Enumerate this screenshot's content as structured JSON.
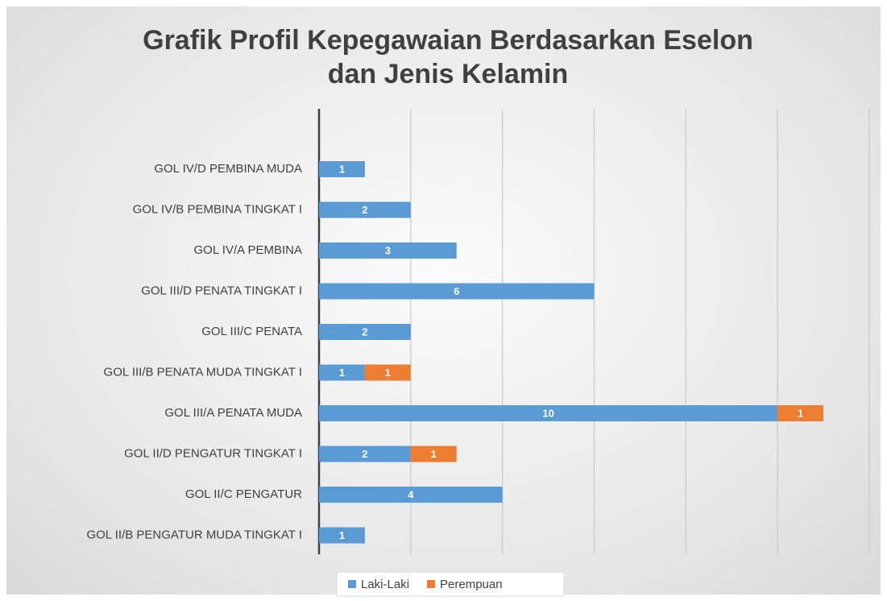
{
  "chart_data": {
    "type": "bar",
    "orientation": "horizontal",
    "stacked": true,
    "title": [
      "Grafik Profil Kepegawaian Berdasarkan Eselon",
      "dan Jenis Kelamin"
    ],
    "categories": [
      "GOL IV/D PEMBINA MUDA",
      "GOL IV/B PEMBINA TINGKAT I",
      "GOL IV/A PEMBINA",
      "GOL III/D PENATA TINGKAT I",
      "GOL III/C PENATA",
      "GOL III/B PENATA MUDA TINGKAT I",
      "GOL III/A PENATA MUDA",
      "GOL II/D PENGATUR TINGKAT I",
      "GOL II/C PENGATUR",
      "GOL II/B PENGATUR MUDA TINGKAT I"
    ],
    "series": [
      {
        "name": "Laki-Laki",
        "color": "#5b9bd5",
        "values": [
          1,
          2,
          3,
          6,
          2,
          1,
          10,
          2,
          4,
          1
        ]
      },
      {
        "name": "Perempuan",
        "color": "#ed7d31",
        "values": [
          null,
          null,
          null,
          null,
          null,
          1,
          1,
          1,
          null,
          null
        ]
      }
    ],
    "xlim": [
      0,
      12
    ],
    "xticks": [
      0,
      2,
      4,
      6,
      8,
      10,
      12
    ],
    "grid": true,
    "legend": "bottom"
  }
}
